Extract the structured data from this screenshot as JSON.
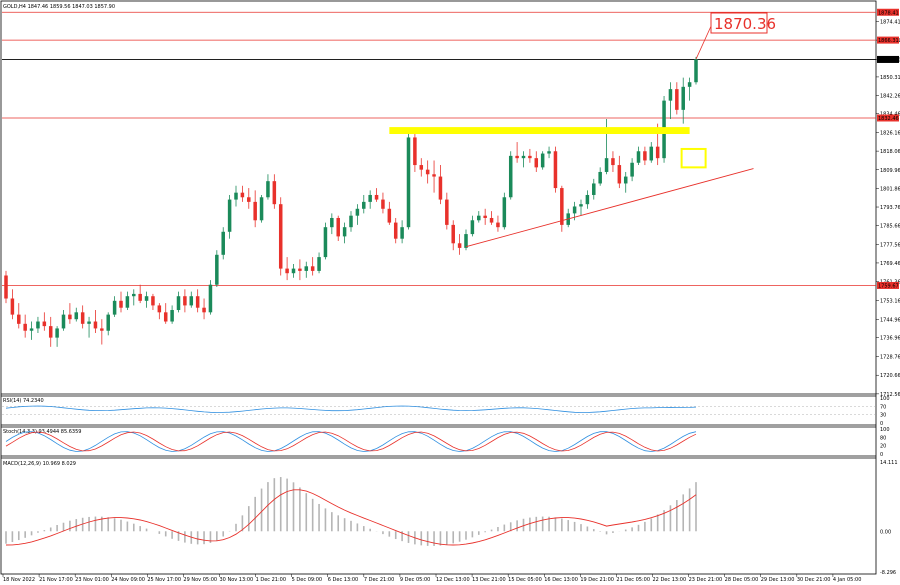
{
  "chart_data": {
    "type": "candlestick",
    "symbol_header": "GOLD,H4  1847.46 1859.56 1847.03 1857.90",
    "callout": "1870.36",
    "ylim": [
      1712.5,
      1882.0
    ],
    "y_ticks": [
      "1874.41",
      "1866.31",
      "1857.90",
      "1850.31",
      "1842.26",
      "1834.46",
      "1826.16",
      "1818.06",
      "1809.96",
      "1801.86",
      "1793.76",
      "1785.66",
      "1777.56",
      "1769.46",
      "1761.36",
      "1753.16",
      "1744.96",
      "1736.96",
      "1728.76",
      "1720.66",
      "1712.56"
    ],
    "price_tags": [
      {
        "text": "1878.41",
        "value": 1878.41,
        "color": "#e8312b"
      },
      {
        "text": "1866.31",
        "value": 1866.31,
        "color": "#e8312b"
      },
      {
        "text": "1857.90",
        "value": 1857.9,
        "color": "#000000"
      },
      {
        "text": "1832.46",
        "value": 1832.46,
        "color": "#e8312b"
      },
      {
        "text": "1759.67",
        "value": 1759.67,
        "color": "#e8312b"
      }
    ],
    "horizontal_levels": [
      1878.41,
      1866.31,
      1857.9,
      1832.46,
      1759.67
    ],
    "resistance_zone": {
      "from": 1825.5,
      "to": 1828.5,
      "x_start": 60,
      "x_end": 107
    },
    "trendline": {
      "x1": 72,
      "y1": 1776.5,
      "x2": 117,
      "y2": 1810.5
    },
    "x_labels": [
      "18 Nov 2022",
      "21 Nov 17:00",
      "23 Nov 01:00",
      "24 Nov 09:00",
      "25 Nov 17:00",
      "29 Nov 05:00",
      "30 Nov 13:00",
      "1 Dec 21:00",
      "5 Dec 09:00",
      "6 Dec 13:00",
      "7 Dec 21:00",
      "9 Dec 05:00",
      "12 Dec 13:00",
      "13 Dec 21:00",
      "15 Dec 05:00",
      "16 Dec 13:00",
      "19 Dec 21:00",
      "21 Dec 05:00",
      "22 Dec 13:00",
      "23 Dec 21:00",
      "28 Dec 05:00",
      "29 Dec 13:00",
      "30 Dec 21:00",
      "4 Jan 05:00"
    ],
    "ohlc": [
      [
        1764,
        1766,
        1752,
        1754
      ],
      [
        1754,
        1758,
        1745,
        1747
      ],
      [
        1747,
        1752,
        1741,
        1743
      ],
      [
        1743,
        1747,
        1737,
        1740
      ],
      [
        1740,
        1744,
        1736,
        1741
      ],
      [
        1741,
        1746,
        1739,
        1744
      ],
      [
        1744,
        1748,
        1740,
        1742
      ],
      [
        1742,
        1746,
        1733,
        1737
      ],
      [
        1737,
        1742,
        1733,
        1741
      ],
      [
        1741,
        1749,
        1740,
        1747
      ],
      [
        1747,
        1752,
        1743,
        1745
      ],
      [
        1745,
        1750,
        1744,
        1748
      ],
      [
        1748,
        1751,
        1741,
        1743
      ],
      [
        1743,
        1746,
        1737,
        1744
      ],
      [
        1744,
        1749,
        1739,
        1741
      ],
      [
        1741,
        1745,
        1734,
        1740
      ],
      [
        1740,
        1748,
        1738,
        1747
      ],
      [
        1747,
        1755,
        1746,
        1753
      ],
      [
        1753,
        1757,
        1748,
        1750
      ],
      [
        1750,
        1757,
        1749,
        1755
      ],
      [
        1755,
        1758,
        1751,
        1756
      ],
      [
        1756,
        1760,
        1752,
        1753
      ],
      [
        1753,
        1757,
        1750,
        1755
      ],
      [
        1755,
        1756,
        1749,
        1751
      ],
      [
        1751,
        1752,
        1745,
        1748
      ],
      [
        1748,
        1752,
        1743,
        1744
      ],
      [
        1744,
        1751,
        1743,
        1749
      ],
      [
        1749,
        1757,
        1748,
        1755
      ],
      [
        1755,
        1758,
        1748,
        1751
      ],
      [
        1751,
        1757,
        1750,
        1755
      ],
      [
        1755,
        1758,
        1748,
        1750
      ],
      [
        1750,
        1754,
        1745,
        1748
      ],
      [
        1748,
        1762,
        1747,
        1760
      ],
      [
        1760,
        1775,
        1759,
        1773
      ],
      [
        1773,
        1785,
        1771,
        1783
      ],
      [
        1783,
        1799,
        1780,
        1797
      ],
      [
        1797,
        1803,
        1794,
        1800
      ],
      [
        1800,
        1803,
        1796,
        1798
      ],
      [
        1798,
        1802,
        1793,
        1796
      ],
      [
        1796,
        1801,
        1785,
        1788
      ],
      [
        1788,
        1799,
        1787,
        1798
      ],
      [
        1798,
        1808,
        1797,
        1805
      ],
      [
        1805,
        1808,
        1793,
        1795
      ],
      [
        1795,
        1798,
        1764,
        1767
      ],
      [
        1767,
        1772,
        1762,
        1765
      ],
      [
        1765,
        1769,
        1763,
        1767
      ],
      [
        1767,
        1771,
        1762,
        1766
      ],
      [
        1766,
        1770,
        1763,
        1768
      ],
      [
        1768,
        1772,
        1764,
        1766
      ],
      [
        1766,
        1774,
        1765,
        1772
      ],
      [
        1772,
        1787,
        1771,
        1785
      ],
      [
        1785,
        1791,
        1782,
        1789
      ],
      [
        1789,
        1790,
        1779,
        1781
      ],
      [
        1781,
        1787,
        1778,
        1785
      ],
      [
        1785,
        1792,
        1783,
        1790
      ],
      [
        1790,
        1795,
        1786,
        1793
      ],
      [
        1793,
        1799,
        1791,
        1796
      ],
      [
        1796,
        1801,
        1793,
        1799
      ],
      [
        1799,
        1802,
        1796,
        1797
      ],
      [
        1797,
        1800,
        1791,
        1793
      ],
      [
        1793,
        1796,
        1786,
        1787
      ],
      [
        1787,
        1789,
        1778,
        1780
      ],
      [
        1780,
        1788,
        1778,
        1785
      ],
      [
        1785,
        1828,
        1784,
        1824
      ],
      [
        1824,
        1828,
        1809,
        1812
      ],
      [
        1812,
        1815,
        1807,
        1810
      ],
      [
        1810,
        1814,
        1804,
        1808
      ],
      [
        1808,
        1814,
        1800,
        1807
      ],
      [
        1807,
        1812,
        1795,
        1797
      ],
      [
        1797,
        1800,
        1784,
        1786
      ],
      [
        1786,
        1788,
        1775,
        1778
      ],
      [
        1778,
        1782,
        1773,
        1776
      ],
      [
        1776,
        1784,
        1775,
        1782
      ],
      [
        1782,
        1790,
        1781,
        1788
      ],
      [
        1788,
        1792,
        1787,
        1790
      ],
      [
        1790,
        1793,
        1786,
        1789
      ],
      [
        1789,
        1792,
        1786,
        1787
      ],
      [
        1787,
        1790,
        1783,
        1785
      ],
      [
        1785,
        1800,
        1784,
        1798
      ],
      [
        1798,
        1818,
        1797,
        1816
      ],
      [
        1816,
        1822,
        1813,
        1815
      ],
      [
        1815,
        1818,
        1811,
        1816
      ],
      [
        1816,
        1819,
        1813,
        1815
      ],
      [
        1815,
        1818,
        1809,
        1811
      ],
      [
        1811,
        1818,
        1810,
        1817
      ],
      [
        1817,
        1820,
        1815,
        1818
      ],
      [
        1818,
        1820,
        1800,
        1802
      ],
      [
        1802,
        1803,
        1783,
        1786
      ],
      [
        1786,
        1793,
        1785,
        1791
      ],
      [
        1791,
        1796,
        1788,
        1794
      ],
      [
        1794,
        1797,
        1790,
        1795
      ],
      [
        1795,
        1801,
        1793,
        1799
      ],
      [
        1799,
        1806,
        1797,
        1804
      ],
      [
        1804,
        1811,
        1803,
        1809
      ],
      [
        1809,
        1832,
        1808,
        1815
      ],
      [
        1815,
        1818,
        1809,
        1812
      ],
      [
        1812,
        1816,
        1802,
        1804
      ],
      [
        1804,
        1809,
        1800,
        1807
      ],
      [
        1807,
        1815,
        1805,
        1813
      ],
      [
        1813,
        1820,
        1812,
        1818
      ],
      [
        1818,
        1820,
        1812,
        1814
      ],
      [
        1814,
        1822,
        1813,
        1820
      ],
      [
        1820,
        1830,
        1812,
        1815
      ],
      [
        1815,
        1842,
        1813,
        1840
      ],
      [
        1840,
        1848,
        1832,
        1845
      ],
      [
        1845,
        1848,
        1834,
        1836
      ],
      [
        1836,
        1850,
        1830,
        1846
      ],
      [
        1846,
        1850,
        1840,
        1848
      ],
      [
        1848,
        1859,
        1847,
        1858
      ]
    ],
    "rsi": {
      "label": "RSI(14) 74.2340",
      "ticks": [
        "100",
        "70",
        "30",
        "0"
      ]
    },
    "stoch": {
      "label": "Stoch(14,3,3) 93.4944 85.6359",
      "ticks": [
        "100",
        "80",
        "20",
        "0"
      ]
    },
    "macd": {
      "label": "MACD(12,26,9) 10.969 8.029",
      "ticks": [
        "14.111",
        "0.00",
        "-8.296"
      ]
    }
  },
  "colors": {
    "bull": "#1b8a5a",
    "bear": "#e8312b",
    "level": "#e8312b",
    "zone": "#ffff00",
    "rsi": "#2f8fe0",
    "stoch_main": "#2f8fe0",
    "stoch_signal": "#e8312b",
    "macd_hist": "#b5b5b5",
    "macd_signal": "#e8312b",
    "grid": "#a0a0a0"
  }
}
